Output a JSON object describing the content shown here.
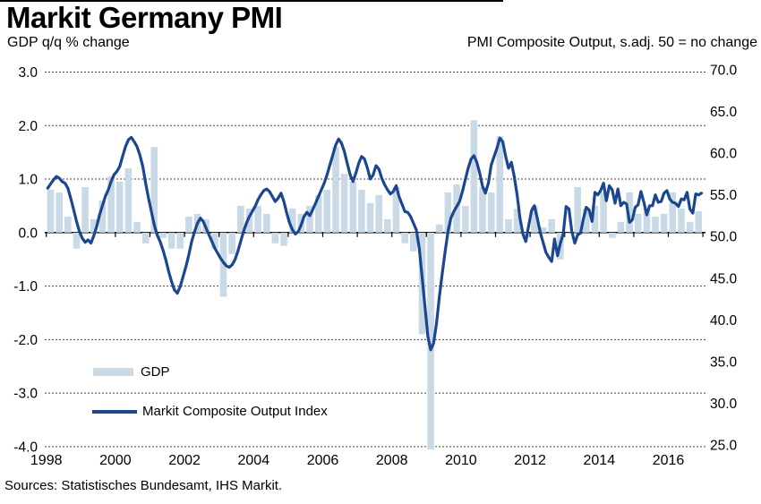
{
  "page": {
    "title": "Markit Germany PMI",
    "subtitle_left": "GDP q/q % change",
    "subtitle_right": "PMI Composite Output, s.adj. 50 = no change",
    "source": "Sources: Statistisches Bundesamt, IHS Markit."
  },
  "legend": {
    "gdp_label": "GDP",
    "pmi_label": "Markit Composite Output Index"
  },
  "colors": {
    "gdp_bar": "#c9d9e5",
    "pmi_line": "#1b4690",
    "gridline": "#444444",
    "zero_line": "#000000",
    "top_rule": "#000000",
    "text": "#000000"
  },
  "chart_data": {
    "type": [
      "bar",
      "line"
    ],
    "title": "Markit Germany PMI",
    "grid": "dashed-horizontal",
    "legend_position": "inside-bottom-left",
    "left_axis": {
      "label": "GDP q/q % change",
      "min": -4.0,
      "max": 3.0,
      "ticks": [
        {
          "label": "3.0",
          "value": 3
        },
        {
          "label": "2.0",
          "value": 2
        },
        {
          "label": "1.0",
          "value": 1
        },
        {
          "label": "0.0",
          "value": 0
        },
        {
          "label": "-1.0",
          "value": -1
        },
        {
          "label": "-2.0",
          "value": -2
        },
        {
          "label": "-3.0",
          "value": -3
        },
        {
          "label": "-4.0",
          "value": -4
        }
      ]
    },
    "right_axis": {
      "label": "PMI Composite Output, s.adj. 50 = no change",
      "min": 25.0,
      "max": 70.0,
      "ticks": [
        {
          "label": "70.0",
          "value": 70
        },
        {
          "label": "65.0",
          "value": 65
        },
        {
          "label": "60.0",
          "value": 60
        },
        {
          "label": "55.0",
          "value": 55
        },
        {
          "label": "50.0",
          "value": 50
        },
        {
          "label": "45.0",
          "value": 45
        },
        {
          "label": "40.0",
          "value": 40
        },
        {
          "label": "35.0",
          "value": 35
        },
        {
          "label": "30.0",
          "value": 30
        },
        {
          "label": "25.0",
          "value": 25
        }
      ]
    },
    "x_axis": {
      "start_year": 1998,
      "end_year": 2017,
      "tick_labels": [
        {
          "label": "1998",
          "value": 1998
        },
        {
          "label": "2000",
          "value": 2000
        },
        {
          "label": "2002",
          "value": 2002
        },
        {
          "label": "2004",
          "value": 2004
        },
        {
          "label": "2006",
          "value": 2006
        },
        {
          "label": "2008",
          "value": 2008
        },
        {
          "label": "2010",
          "value": 2010
        },
        {
          "label": "2012",
          "value": 2012
        },
        {
          "label": "2014",
          "value": 2014
        },
        {
          "label": "2016",
          "value": 2016
        }
      ]
    },
    "gdp_quarterly": {
      "name": "GDP",
      "unit": "q/q % change",
      "start": "1998Q1",
      "values": [
        0.8,
        0.75,
        0.3,
        -0.3,
        0.85,
        0.25,
        0.6,
        1.05,
        0.95,
        1.2,
        0.2,
        -0.2,
        1.6,
        -0.1,
        -0.3,
        -0.3,
        0.3,
        0.35,
        0.25,
        -0.3,
        -1.2,
        -0.4,
        0.5,
        0.45,
        0.5,
        0.35,
        -0.2,
        -0.25,
        0.45,
        0.35,
        0.5,
        0.7,
        0.8,
        1.6,
        1.1,
        0.95,
        0.8,
        0.55,
        0.7,
        0.25,
        0.85,
        -0.2,
        -0.35,
        -1.9,
        -4.5,
        0.15,
        0.75,
        0.9,
        0.5,
        2.1,
        0.85,
        0.75,
        1.8,
        0.25,
        0.45,
        -0.1,
        0.5,
        0.1,
        0.25,
        -0.5,
        0.0,
        0.85,
        0.45,
        0.5,
        0.75,
        -0.1,
        0.2,
        0.75,
        0.35,
        0.45,
        0.3,
        0.35,
        0.75,
        0.45,
        0.2,
        0.4
      ]
    },
    "pmi_monthly": {
      "name": "Markit Composite Output Index",
      "unit": "index, 50 = no change",
      "start": "1998-01",
      "values": [
        55.8,
        56.3,
        56.8,
        57.2,
        57.0,
        56.6,
        56.4,
        55.8,
        54.6,
        53.2,
        51.8,
        50.6,
        49.8,
        49.3,
        49.6,
        49.2,
        50.1,
        51.2,
        52.6,
        53.7,
        54.8,
        55.6,
        56.6,
        57.4,
        57.8,
        58.4,
        59.6,
        60.8,
        61.6,
        61.9,
        61.4,
        60.8,
        59.8,
        58.4,
        56.4,
        54.6,
        53.0,
        51.4,
        50.2,
        49.4,
        48.4,
        47.2,
        45.8,
        44.6,
        43.6,
        43.2,
        44.0,
        45.2,
        46.4,
        47.8,
        49.4,
        50.6,
        51.6,
        52.2,
        51.8,
        51.0,
        50.2,
        49.4,
        48.6,
        48.0,
        47.4,
        46.9,
        46.5,
        46.3,
        46.6,
        47.2,
        48.2,
        49.4,
        50.6,
        51.6,
        52.4,
        53.0,
        53.6,
        54.4,
        55.0,
        55.5,
        55.7,
        55.4,
        54.8,
        54.2,
        54.6,
        55.2,
        54.2,
        52.8,
        51.6,
        50.8,
        50.3,
        50.6,
        51.4,
        52.4,
        52.9,
        52.5,
        53.2,
        54.0,
        54.8,
        55.6,
        56.4,
        57.4,
        58.6,
        59.8,
        61.0,
        61.7,
        61.2,
        60.2,
        58.8,
        57.4,
        56.6,
        57.6,
        58.8,
        59.6,
        59.3,
        58.2,
        56.9,
        57.4,
        58.5,
        58.1,
        57.0,
        56.2,
        55.6,
        55.1,
        55.4,
        56.1,
        54.8,
        53.9,
        53.0,
        52.9,
        52.4,
        51.6,
        50.8,
        48.6,
        45.1,
        41.6,
        38.0,
        36.4,
        37.2,
        39.6,
        42.8,
        45.6,
        48.2,
        50.6,
        52.2,
        53.0,
        53.6,
        54.2,
        55.4,
        56.8,
        58.2,
        59.3,
        59.7,
        58.9,
        57.6,
        56.0,
        55.2,
        56.4,
        58.6,
        59.6,
        60.6,
        61.8,
        61.4,
        59.6,
        58.2,
        58.9,
        57.2,
        55.0,
        52.2,
        50.3,
        49.4,
        51.3,
        53.1,
        53.7,
        52.2,
        50.5,
        49.3,
        48.1,
        47.5,
        47.0,
        49.7,
        47.7,
        49.2,
        50.3,
        53.6,
        53.3,
        50.6,
        49.2,
        50.2,
        50.4,
        52.1,
        53.5,
        53.2,
        51.8,
        55.3,
        55.0,
        55.5,
        56.4,
        54.3,
        56.1,
        55.6,
        54.0,
        55.7,
        53.7,
        54.1,
        53.9,
        51.7,
        52.0,
        53.5,
        53.8,
        55.4,
        54.1,
        52.6,
        53.7,
        53.7,
        55.0,
        54.1,
        54.2,
        55.2,
        55.5,
        54.5,
        54.1,
        54.0,
        53.6,
        54.5,
        54.4,
        55.3,
        53.3,
        52.8,
        55.1,
        55.0,
        55.2
      ]
    }
  }
}
